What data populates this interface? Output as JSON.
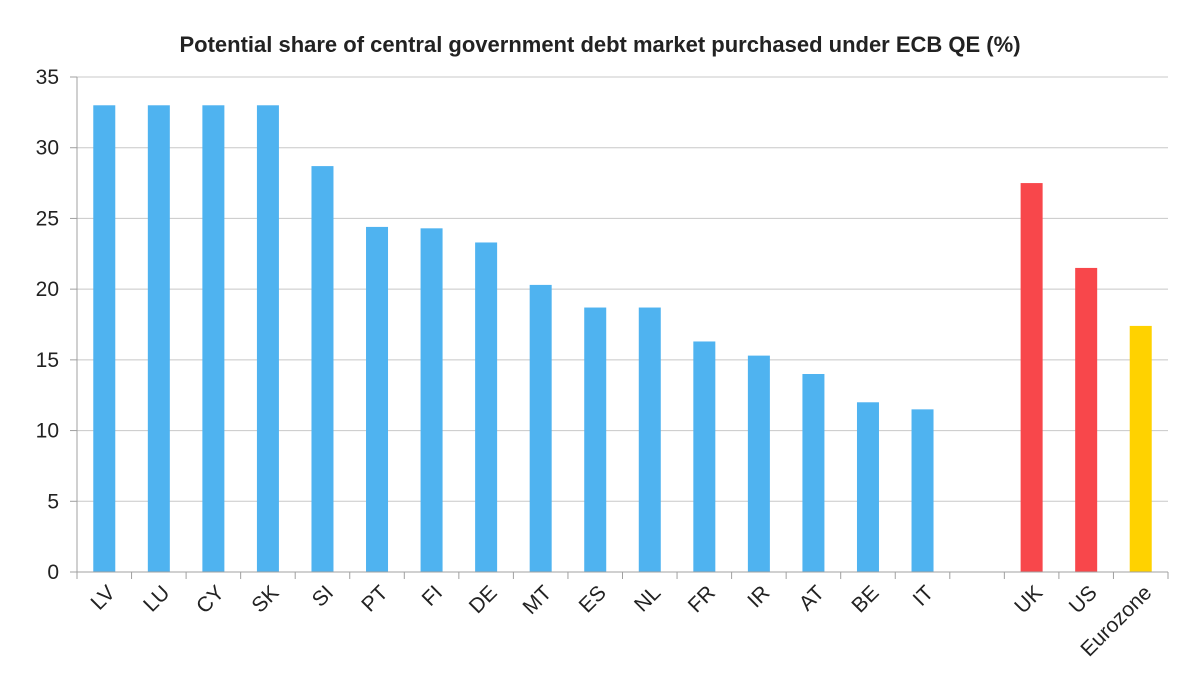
{
  "chart_data": {
    "type": "bar",
    "title": "Potential share of central government debt market purchased under ECB QE (%)",
    "xlabel": "",
    "ylabel": "",
    "ylim": [
      0,
      35
    ],
    "yticks": [
      0,
      5,
      10,
      15,
      20,
      25,
      30,
      35
    ],
    "grid": true,
    "categories": [
      "LV",
      "LU",
      "CY",
      "SK",
      "SI",
      "PT",
      "FI",
      "DE",
      "MT",
      "ES",
      "NL",
      "FR",
      "IR",
      "AT",
      "BE",
      "IT",
      "",
      "UK",
      "US",
      "Eurozone"
    ],
    "values": [
      33.0,
      33.0,
      33.0,
      33.0,
      28.7,
      24.4,
      24.3,
      23.3,
      20.3,
      18.7,
      18.7,
      16.3,
      15.3,
      14.0,
      12.0,
      11.5,
      null,
      27.5,
      21.5,
      17.4
    ],
    "colors": [
      "#4fb3f0",
      "#4fb3f0",
      "#4fb3f0",
      "#4fb3f0",
      "#4fb3f0",
      "#4fb3f0",
      "#4fb3f0",
      "#4fb3f0",
      "#4fb3f0",
      "#4fb3f0",
      "#4fb3f0",
      "#4fb3f0",
      "#4fb3f0",
      "#4fb3f0",
      "#4fb3f0",
      "#4fb3f0",
      "#4fb3f0",
      "#f8474b",
      "#f8474b",
      "#ffd200"
    ],
    "grid_color": "#c8c8c8",
    "axis_color": "#a0a0a0"
  }
}
